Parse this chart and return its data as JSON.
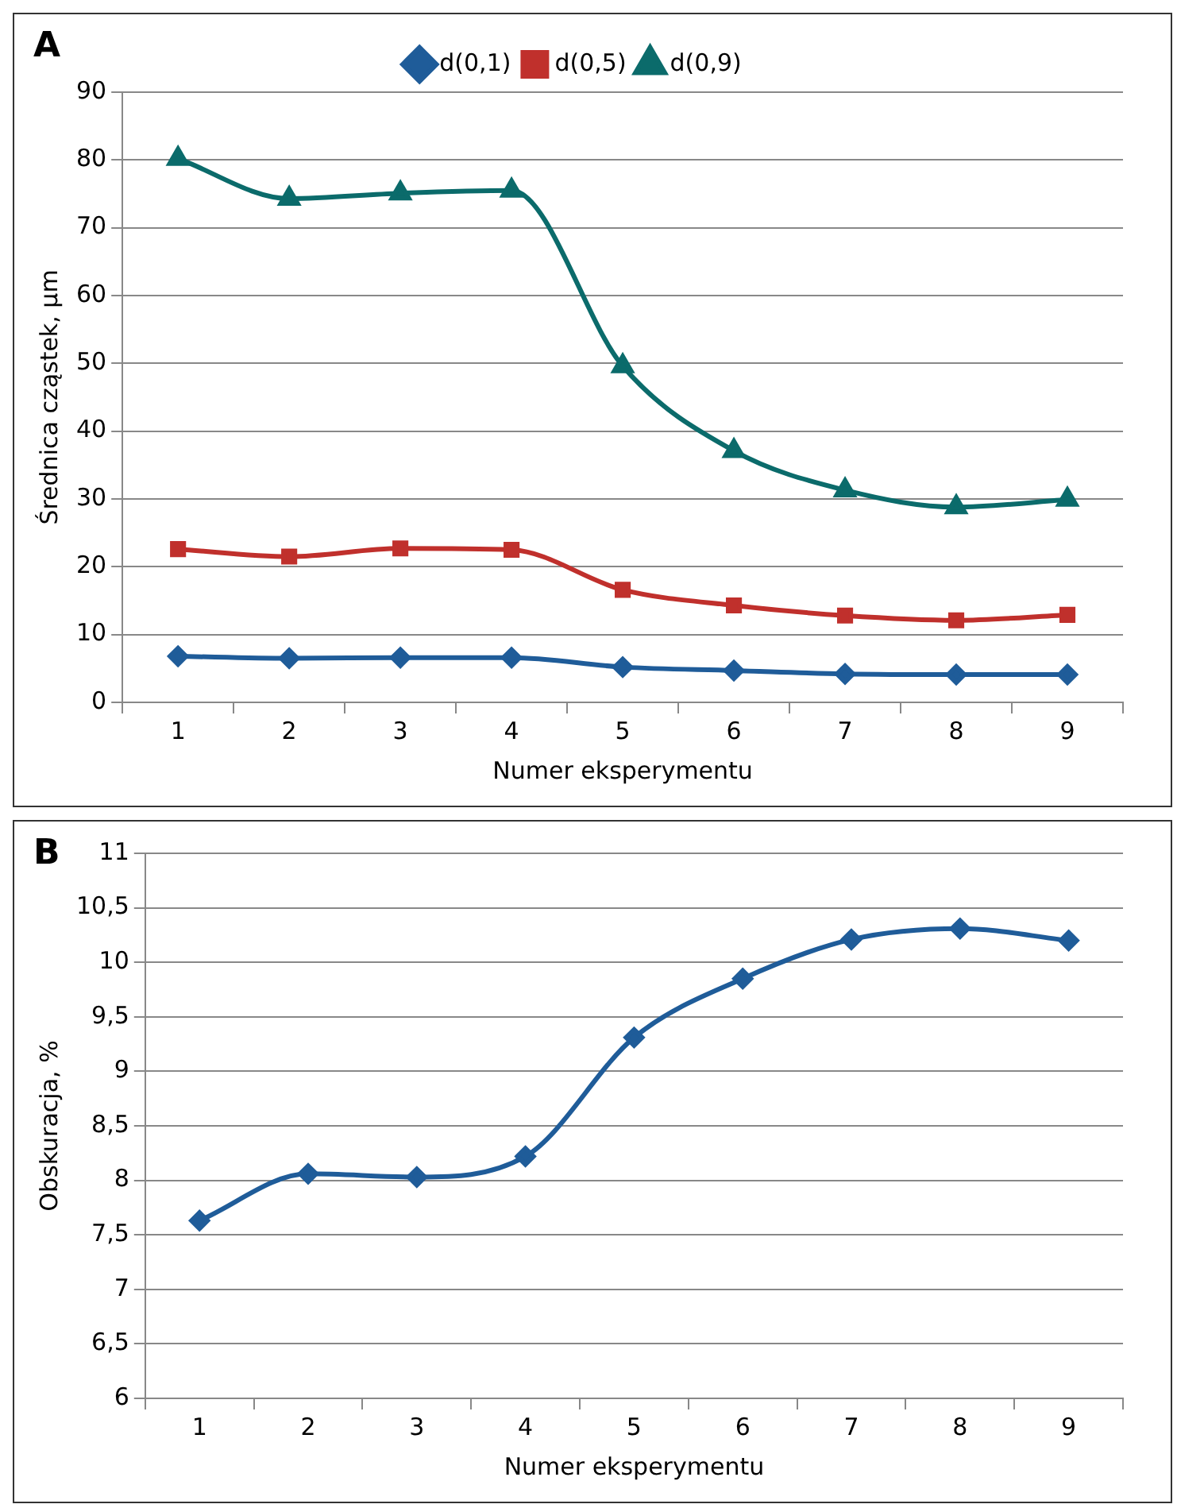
{
  "chart_data": [
    {
      "type": "line",
      "title": "A",
      "xlabel": "Numer eksperymentu",
      "ylabel": "Średnica cząstek, µm",
      "categories": [
        "1",
        "2",
        "3",
        "4",
        "5",
        "6",
        "7",
        "8",
        "9"
      ],
      "series": [
        {
          "name": "d(0,1)",
          "color": "#1f5c99",
          "marker": "diamond",
          "values": [
            6.8,
            6.5,
            6.6,
            6.6,
            5.2,
            4.7,
            4.2,
            4.1,
            4.1
          ]
        },
        {
          "name": "d(0,5)",
          "color": "#c0302c",
          "marker": "square",
          "values": [
            22.6,
            21.5,
            22.7,
            22.5,
            16.6,
            14.3,
            12.8,
            12.1,
            12.9
          ]
        },
        {
          "name": "d(0,9)",
          "color": "#0b6b6b",
          "marker": "triangle",
          "values": [
            80.2,
            74.3,
            75.1,
            75.5,
            49.6,
            37.1,
            31.3,
            28.8,
            29.9
          ]
        }
      ],
      "ylim": [
        0,
        90
      ],
      "yticks": [
        0,
        10,
        20,
        30,
        40,
        50,
        60,
        70,
        80,
        90
      ],
      "grid": "y",
      "legend": "top",
      "line_style": "solid"
    },
    {
      "type": "line",
      "title": "B",
      "xlabel": "Numer eksperymentu",
      "ylabel": "Obskuracja, %",
      "categories": [
        "1",
        "2",
        "3",
        "4",
        "5",
        "6",
        "7",
        "8",
        "9"
      ],
      "series": [
        {
          "color": "#1f5c99",
          "marker": "diamond",
          "values": [
            7.63,
            8.06,
            8.03,
            8.22,
            9.31,
            9.85,
            10.21,
            10.31,
            10.2
          ]
        }
      ],
      "ylim": [
        6,
        11
      ],
      "yticks": [
        6,
        {
          "value": 6.5,
          "label": "6,5"
        },
        7,
        {
          "value": 7.5,
          "label": "7,5"
        },
        8,
        {
          "value": 8.5,
          "label": "8,5"
        },
        9,
        {
          "value": 9.5,
          "label": "9,5"
        },
        10,
        {
          "value": 10.5,
          "label": "10,5"
        },
        11
      ],
      "grid": "y",
      "legend": false,
      "line_style": "solid"
    }
  ]
}
